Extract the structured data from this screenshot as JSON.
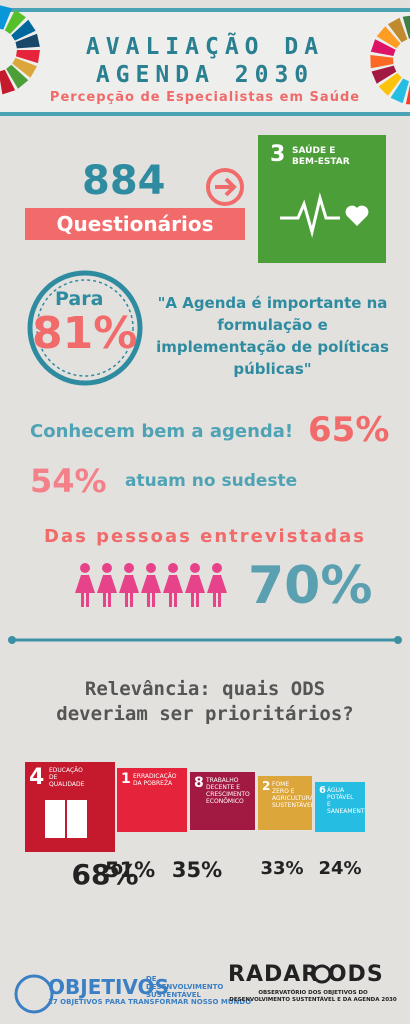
{
  "header": {
    "title_lines": [
      "AVALIAÇÃO DA",
      "AGENDA 2030"
    ],
    "subtitle": "Percepção de Especialistas em Saúde"
  },
  "survey": {
    "count": "884",
    "label": "Questionários"
  },
  "sdg3": {
    "number": "3",
    "label_lines": [
      "SAÚDE E",
      "BEM-ESTAR"
    ]
  },
  "quote": {
    "prefix": "Para",
    "percent": "81%",
    "text": "\"A Agenda é importante na formulação e implementação de políticas públicas\""
  },
  "facts": [
    {
      "text": "Conhecem bem a agenda!",
      "percent": "65%"
    },
    {
      "percent": "54%",
      "text": "atuam no sudeste"
    }
  ],
  "women": {
    "text": "Das pessoas entrevistadas",
    "percent": "70%"
  },
  "question": {
    "lines": [
      "Relevância: quais ODS",
      "deveriam ser prioritários?"
    ]
  },
  "sdgs": [
    {
      "number": "4",
      "label": "EDUCAÇÃO DE QUALIDADE",
      "percent": "68%"
    },
    {
      "number": "1",
      "label": "ERRADICAÇÃO DA POBREZA",
      "percent": "51%"
    },
    {
      "number": "8",
      "label": "TRABALHO DECENTE E CRESCIMENTO ECONÔMICO",
      "percent": "35%"
    },
    {
      "number": "2",
      "label": "FOME ZERO E AGRICULTURA SUSTENTÁVEL",
      "percent": "33%"
    },
    {
      "number": "6",
      "label": "ÁGUA POTÁVEL E SANEAMENTO",
      "percent": "24%"
    }
  ],
  "footer": {
    "brand": "OBJETIVOS",
    "brand_sub": "DE DESENVOLVIMENTO SUSTENTÁVEL",
    "tagline": "17 OBJETIVOS PARA TRANSFORMAR NOSSO MUNDO",
    "radar": "RADAR ODS",
    "radar_sub": "OBSERVATÓRIO DOS OBJETIVOS DO DESENVOLVIMENTO SUSTENTÁVEL E DA AGENDA 2030"
  }
}
